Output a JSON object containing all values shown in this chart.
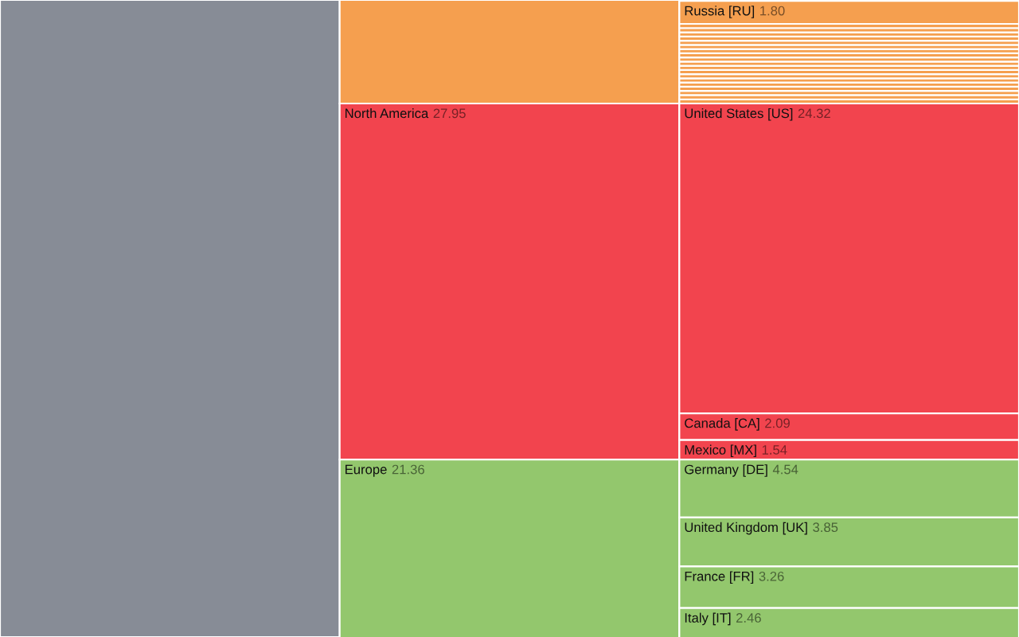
{
  "chart_data": {
    "type": "other",
    "categories": [
      null,
      null,
      "North America",
      "Europe",
      "Russia [RU]",
      null,
      null,
      null,
      null,
      null,
      null,
      null,
      null,
      null,
      null,
      null,
      null,
      null,
      null,
      null,
      null,
      null,
      null,
      null,
      "United States [US]",
      "Canada [CA]",
      "Mexico [MX]",
      "Germany [DE]",
      "United Kingdom [UK]",
      "France [FR]",
      "Italy [IT]"
    ],
    "series": [
      {
        "values": [
          null,
          null,
          null,
          null,
          null,
          null,
          null,
          null,
          null,
          null,
          null,
          null,
          null,
          null,
          null,
          null,
          null,
          null,
          null,
          null,
          null,
          null,
          null,
          null,
          null,
          null,
          null,
          null,
          null,
          null,
          null
        ],
        "colors": [
          "#878c96",
          null,
          null,
          null,
          null,
          null,
          null,
          null,
          null,
          null,
          null,
          null,
          null,
          null,
          null,
          null,
          null,
          null,
          null,
          null,
          null,
          null,
          null,
          null,
          null,
          null,
          null,
          null,
          null,
          null,
          null
        ]
      },
      {
        "values": [
          null,
          null,
          27.95,
          21.36,
          null,
          null,
          null,
          null,
          null,
          null,
          null,
          null,
          null,
          null,
          null,
          null,
          null,
          null,
          null,
          null,
          null,
          null,
          null,
          null,
          null,
          null,
          null,
          null,
          null,
          null,
          null
        ],
        "value_labels": [
          null,
          null,
          "27.95",
          "21.36",
          null,
          null,
          null,
          null,
          null,
          null,
          null,
          null,
          null,
          null,
          null,
          null,
          null,
          null,
          null,
          null,
          null,
          null,
          null,
          null,
          null,
          null,
          null,
          null,
          null,
          null,
          null
        ],
        "colors": [
          null,
          "#f59f4f",
          "#f2444e",
          "#93c76d",
          null,
          null,
          null,
          null,
          null,
          null,
          null,
          null,
          null,
          null,
          null,
          null,
          null,
          null,
          null,
          null,
          null,
          null,
          null,
          null,
          null,
          null,
          null,
          null,
          null,
          null,
          null
        ]
      },
      {
        "values": [
          null,
          null,
          null,
          null,
          1.8,
          null,
          null,
          null,
          null,
          null,
          null,
          null,
          null,
          null,
          null,
          null,
          null,
          null,
          null,
          null,
          null,
          null,
          null,
          null,
          24.32,
          2.09,
          1.54,
          4.54,
          3.85,
          3.26,
          2.46
        ],
        "value_labels": [
          null,
          null,
          null,
          null,
          "1.80",
          null,
          null,
          null,
          null,
          null,
          null,
          null,
          null,
          null,
          null,
          null,
          null,
          null,
          null,
          null,
          null,
          null,
          null,
          null,
          "24.32",
          "2.09",
          "1.54",
          "4.54",
          "3.85",
          "3.26",
          "2.46"
        ],
        "colors": [
          null,
          null,
          null,
          null,
          "#f59f4f",
          "#f59f4f",
          "#f59f4f",
          "#f59f4f",
          "#f59f4f",
          "#f59f4f",
          "#f59f4f",
          "#f59f4f",
          "#f59f4f",
          "#f59f4f",
          "#f59f4f",
          "#f59f4f",
          "#f59f4f",
          "#f59f4f",
          "#f59f4f",
          "#f59f4f",
          "#f59f4f",
          "#f59f4f",
          "#f59f4f",
          "#f59f4f",
          "#f2444e",
          "#f2444e",
          "#f2444e",
          "#93c76d",
          "#93c76d",
          "#93c76d",
          "#93c76d"
        ]
      }
    ]
  }
}
